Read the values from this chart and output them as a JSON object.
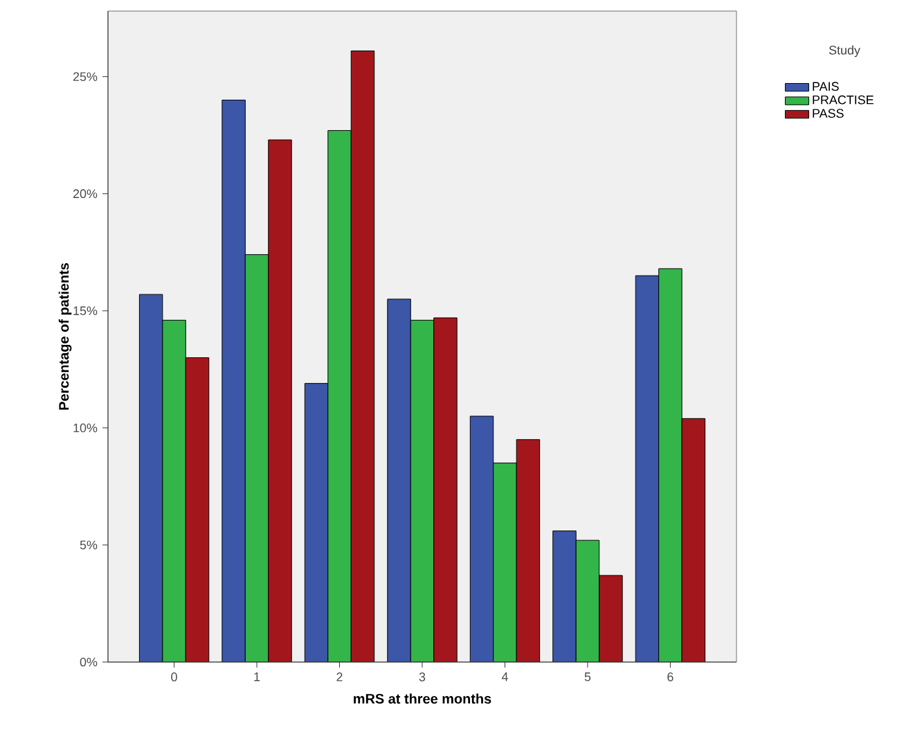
{
  "chart_data": {
    "type": "bar",
    "xlabel": "mRS at three months",
    "ylabel": "Percentage of patients",
    "legend_title": "Study",
    "categories": [
      "0",
      "1",
      "2",
      "3",
      "4",
      "5",
      "6"
    ],
    "series": [
      {
        "name": "PAIS",
        "color": "#3c56a8",
        "values": [
          15.7,
          24.0,
          11.9,
          15.5,
          10.5,
          5.6,
          16.5
        ]
      },
      {
        "name": "PRACTISE",
        "color": "#33b54a",
        "values": [
          14.6,
          17.4,
          22.7,
          14.6,
          8.5,
          5.2,
          16.8
        ]
      },
      {
        "name": "PASS",
        "color": "#a3171c",
        "values": [
          13.0,
          22.3,
          26.1,
          14.7,
          9.5,
          3.7,
          10.4
        ]
      }
    ],
    "ylim": [
      0,
      27.8
    ],
    "yticks": [
      {
        "value": 0,
        "label": "0%"
      },
      {
        "value": 5,
        "label": "5%"
      },
      {
        "value": 10,
        "label": "10%"
      },
      {
        "value": 15,
        "label": "15%"
      },
      {
        "value": 20,
        "label": "20%"
      },
      {
        "value": 25,
        "label": "25%"
      }
    ],
    "grid": false,
    "legend": "top right"
  }
}
